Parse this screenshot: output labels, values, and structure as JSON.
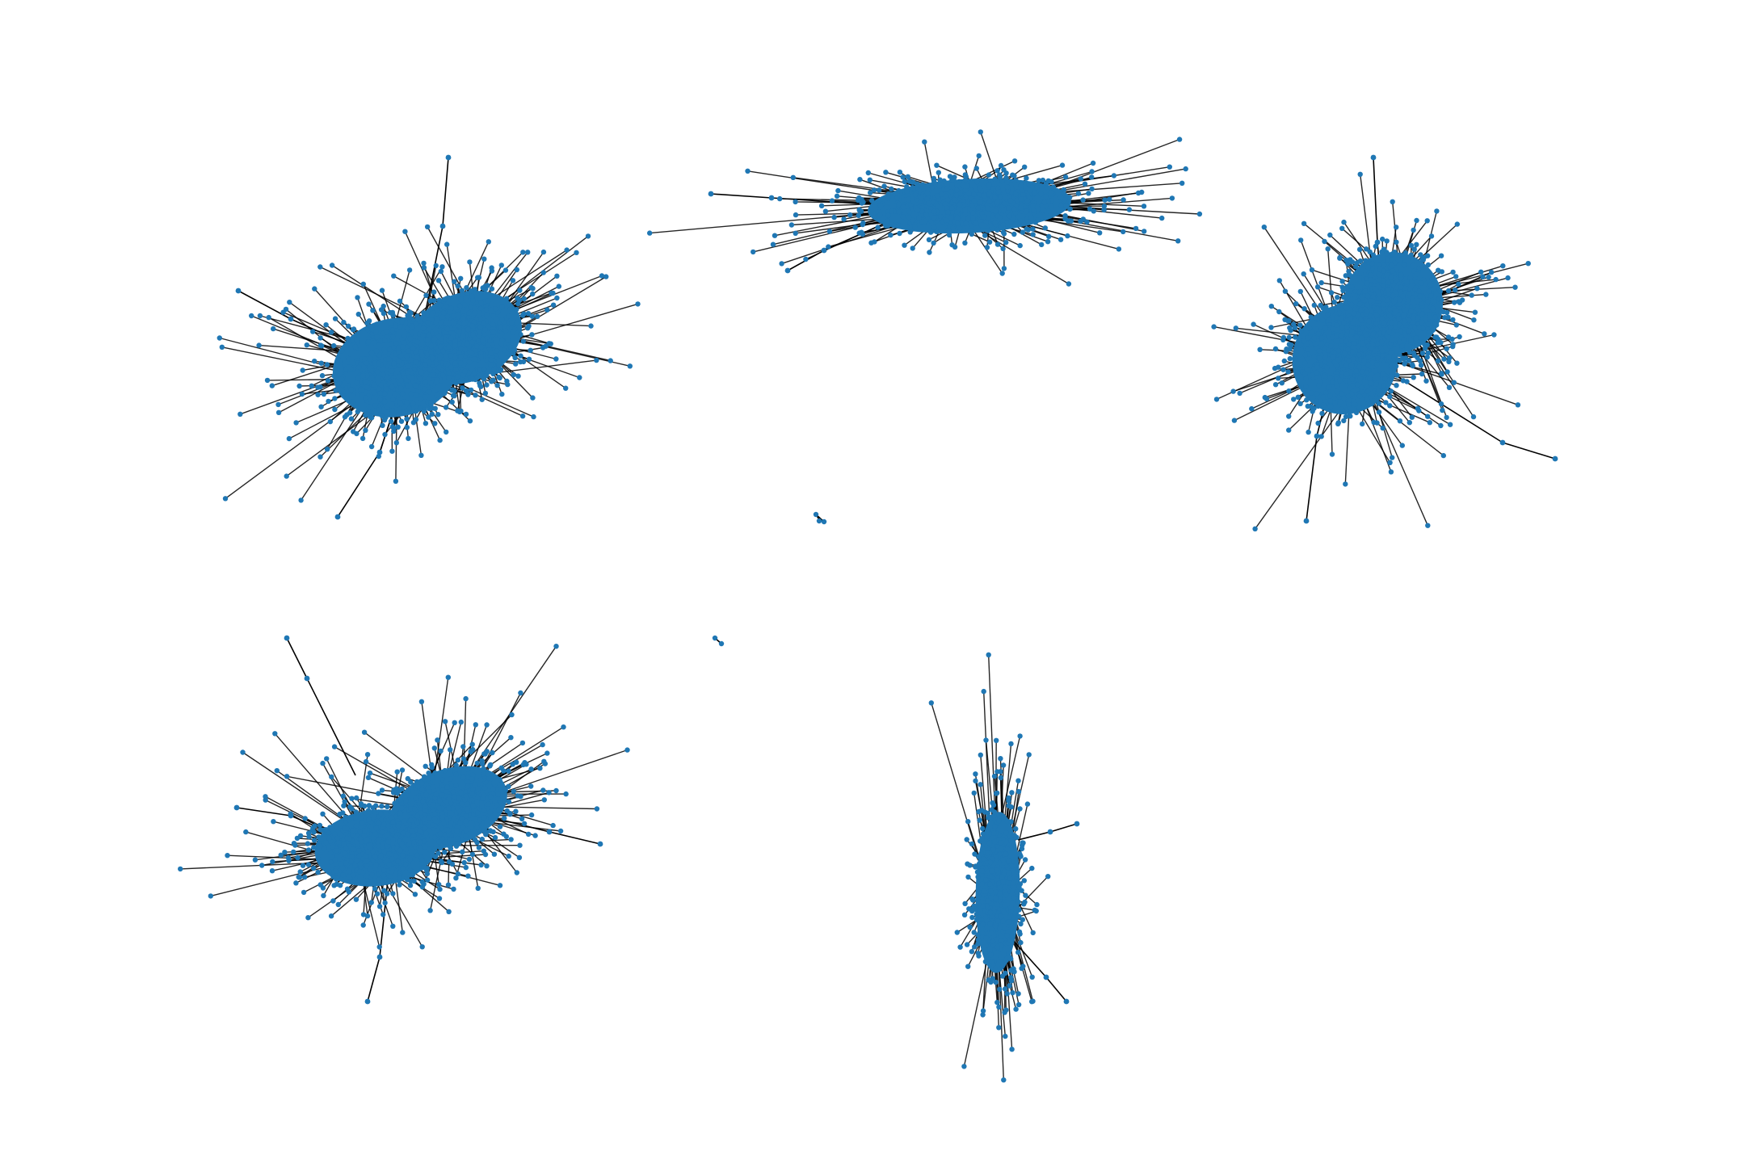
{
  "figure": {
    "background": "#ffffff",
    "node_color": "#1f77b4",
    "edge_color": "#000000",
    "title": ""
  },
  "components": [
    {
      "id": "cluster-top-left",
      "shape": "dense blob, two lobes",
      "approx_nodes": 1200
    },
    {
      "id": "cluster-top-center",
      "shape": "flat elongated blob",
      "approx_nodes": 700
    },
    {
      "id": "cluster-top-right",
      "shape": "dense blob, two lobes",
      "approx_nodes": 1200
    },
    {
      "id": "cluster-bottom-left",
      "shape": "dense diagonal blob",
      "approx_nodes": 1100
    },
    {
      "id": "cluster-bottom-center",
      "shape": "tall narrow blob",
      "approx_nodes": 500
    },
    {
      "id": "pair-small-1",
      "shape": "isolated small component",
      "approx_nodes": 3
    },
    {
      "id": "pair-small-2",
      "shape": "isolated pair",
      "approx_nodes": 2
    }
  ]
}
